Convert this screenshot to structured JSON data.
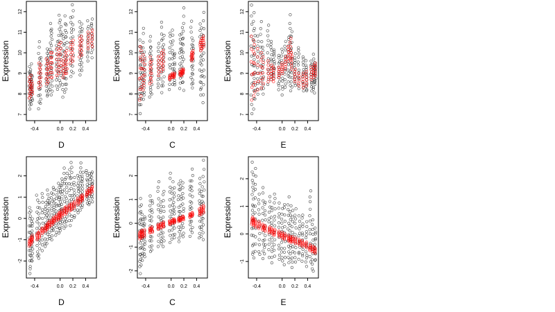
{
  "figure": {
    "colors": {
      "background": "#ffffff",
      "observed": "#000000",
      "fitted": "#ff0000"
    },
    "grid": false
  },
  "chart_data": [
    {
      "type": "scatter",
      "xlabel": "D",
      "ylabel": "Expression",
      "xlim": [
        -0.53,
        0.57
      ],
      "ylim": [
        6.7,
        12.5
      ],
      "xticks": [
        "-0.4",
        "0.0",
        "0.2",
        "0.4"
      ],
      "xtick_values": [
        -0.4,
        0.0,
        0.2,
        0.4
      ],
      "yticks": [
        "7",
        "8",
        "9",
        "10",
        "11",
        "12"
      ],
      "ytick_values": [
        7,
        8,
        9,
        10,
        11,
        12
      ],
      "observed": {
        "x": [
          -0.48,
          -0.46,
          -0.44,
          -0.33,
          -0.31,
          -0.21,
          -0.19,
          -0.15,
          -0.13,
          -0.05,
          -0.02,
          0.01,
          0.05,
          0.08,
          0.1,
          0.17,
          0.2,
          0.31,
          0.34,
          0.44,
          0.5
        ],
        "y_low": [
          7.3,
          7.5,
          7.7,
          7.3,
          7.6,
          7.9,
          8.0,
          7.9,
          8.1,
          8.2,
          8.4,
          8.6,
          7.9,
          8.1,
          8.2,
          8.9,
          9.0,
          8.9,
          9.1,
          9.6,
          9.8
        ],
        "y_high": [
          9.3,
          9.4,
          8.9,
          10.6,
          9.8,
          10.2,
          10.0,
          11.4,
          11.2,
          10.6,
          11.8,
          11.6,
          10.9,
          11.8,
          11.3,
          11.7,
          12.3,
          11.5,
          11.4,
          11.5,
          11.6
        ]
      },
      "fitted": {
        "x": [
          -0.48,
          -0.46,
          -0.44,
          -0.33,
          -0.31,
          -0.21,
          -0.19,
          -0.15,
          -0.13,
          -0.05,
          -0.02,
          0.01,
          0.05,
          0.08,
          0.1,
          0.17,
          0.2,
          0.31,
          0.34,
          0.44,
          0.5
        ],
        "y_low": [
          7.8,
          7.9,
          8.0,
          8.3,
          8.4,
          8.5,
          8.6,
          8.8,
          8.8,
          8.9,
          9.0,
          9.1,
          8.8,
          9.0,
          9.0,
          9.5,
          9.6,
          9.8,
          9.9,
          10.2,
          10.3
        ],
        "y_high": [
          8.8,
          8.9,
          8.6,
          9.5,
          9.4,
          9.7,
          9.6,
          10.0,
          10.0,
          10.2,
          10.4,
          10.5,
          9.6,
          10.0,
          10.1,
          10.5,
          10.6,
          10.7,
          10.8,
          11.0,
          11.1
        ]
      }
    },
    {
      "type": "scatter",
      "xlabel": "C",
      "ylabel": "Expression",
      "xlim": [
        -0.53,
        0.57
      ],
      "ylim": [
        6.7,
        12.5
      ],
      "xticks": [
        "-0.4",
        "0.0",
        "0.2",
        "0.4"
      ],
      "xtick_values": [
        -0.4,
        0.0,
        0.2,
        0.4
      ],
      "yticks": [
        "7",
        "8",
        "9",
        "10",
        "11",
        "12"
      ],
      "ytick_values": [
        7,
        8,
        9,
        10,
        11,
        12
      ],
      "observed": {
        "x": [
          -0.49,
          -0.47,
          -0.44,
          -0.42,
          -0.33,
          -0.31,
          -0.2,
          -0.15,
          -0.12,
          -0.02,
          0.02,
          0.05,
          0.14,
          0.17,
          0.19,
          0.32,
          0.34,
          0.46,
          0.48,
          0.51
        ],
        "y_low": [
          7.1,
          7.5,
          7.7,
          7.9,
          7.8,
          8.0,
          8.3,
          8.1,
          8.4,
          8.2,
          8.5,
          8.4,
          8.3,
          8.6,
          8.2,
          8.5,
          8.3,
          7.9,
          8.3,
          7.6
        ],
        "y_high": [
          10.6,
          10.2,
          11.2,
          10.0,
          10.8,
          10.3,
          10.4,
          11.5,
          10.9,
          11.0,
          11.1,
          10.0,
          10.9,
          11.2,
          12.2,
          11.5,
          10.6,
          11.4,
          11.2,
          12.0
        ]
      },
      "fitted": {
        "x": [
          -0.49,
          -0.47,
          -0.44,
          -0.42,
          -0.33,
          -0.31,
          -0.2,
          -0.15,
          -0.12,
          -0.02,
          0.02,
          0.05,
          0.14,
          0.17,
          0.19,
          0.32,
          0.34,
          0.46,
          0.48,
          0.51
        ],
        "y_low": [
          7.7,
          7.9,
          8.2,
          8.4,
          8.5,
          8.6,
          8.9,
          9.1,
          9.2,
          8.7,
          8.8,
          8.8,
          8.9,
          8.9,
          9.0,
          9.6,
          9.7,
          10.1,
          10.2,
          10.3
        ],
        "y_high": [
          10.3,
          10.1,
          9.9,
          9.7,
          9.8,
          9.6,
          9.8,
          10.0,
          10.1,
          8.9,
          9.0,
          9.0,
          9.1,
          9.2,
          9.2,
          10.0,
          10.1,
          10.6,
          10.7,
          10.8
        ]
      }
    },
    {
      "type": "scatter",
      "xlabel": "E",
      "ylabel": "Expression",
      "xlim": [
        -0.53,
        0.57
      ],
      "ylim": [
        6.7,
        12.5
      ],
      "xticks": [
        "-0.4",
        "0.0",
        "0.2",
        "0.4"
      ],
      "xtick_values": [
        -0.4,
        0.0,
        0.2,
        0.4
      ],
      "yticks": [
        "7",
        "8",
        "9",
        "10",
        "11",
        "12"
      ],
      "ytick_values": [
        7,
        8,
        9,
        10,
        11,
        12
      ],
      "observed": {
        "x": [
          -0.48,
          -0.45,
          -0.43,
          -0.38,
          -0.33,
          -0.3,
          -0.22,
          -0.17,
          -0.13,
          -0.05,
          0.0,
          0.05,
          0.1,
          0.13,
          0.15,
          0.2,
          0.26,
          0.33,
          0.38,
          0.46,
          0.5,
          0.52
        ],
        "y_low": [
          7.0,
          7.3,
          7.8,
          8.0,
          8.2,
          8.0,
          8.4,
          8.7,
          8.8,
          8.2,
          8.0,
          8.3,
          8.6,
          8.1,
          8.3,
          8.4,
          8.3,
          8.2,
          8.1,
          8.2,
          8.0,
          8.5
        ],
        "y_high": [
          12.3,
          11.9,
          11.2,
          10.8,
          11.5,
          10.3,
          11.4,
          10.6,
          10.2,
          9.9,
          10.2,
          10.5,
          10.8,
          11.8,
          11.0,
          9.9,
          10.3,
          9.8,
          9.6,
          9.6,
          9.9,
          9.5
        ]
      },
      "fitted": {
        "x": [
          -0.48,
          -0.45,
          -0.43,
          -0.38,
          -0.33,
          -0.3,
          -0.22,
          -0.17,
          -0.13,
          -0.05,
          0.0,
          0.05,
          0.1,
          0.13,
          0.15,
          0.2,
          0.26,
          0.33,
          0.38,
          0.46,
          0.5,
          0.52
        ],
        "y_low": [
          7.7,
          7.9,
          8.1,
          8.2,
          8.3,
          8.5,
          8.6,
          8.7,
          8.6,
          8.8,
          9.0,
          9.2,
          9.6,
          9.7,
          9.2,
          8.6,
          8.4,
          8.3,
          8.4,
          8.7,
          8.8,
          8.9
        ],
        "y_high": [
          10.8,
          10.6,
          10.4,
          10.2,
          10.0,
          9.8,
          9.6,
          9.4,
          9.3,
          9.3,
          9.5,
          9.8,
          10.3,
          10.7,
          10.0,
          9.2,
          9.0,
          9.0,
          9.1,
          9.3,
          9.4,
          9.5
        ]
      }
    },
    {
      "type": "scatter",
      "xlabel": "D",
      "ylabel": "Expression",
      "xlim": [
        -0.53,
        0.57
      ],
      "ylim": [
        -2.8,
        2.9
      ],
      "xticks": [
        "-0.4",
        "0.0",
        "0.2",
        "0.4"
      ],
      "xtick_values": [
        -0.4,
        0.0,
        0.2,
        0.4
      ],
      "yticks": [
        "-2",
        "-1",
        "0",
        "1",
        "2"
      ],
      "ytick_values": [
        -2,
        -1,
        0,
        1,
        2
      ],
      "observed": {
        "x": [
          -0.48,
          -0.46,
          -0.44,
          -0.36,
          -0.33,
          -0.28,
          -0.23,
          -0.2,
          -0.17,
          -0.13,
          -0.1,
          -0.06,
          -0.02,
          0.0,
          0.03,
          0.07,
          0.1,
          0.15,
          0.18,
          0.22,
          0.28,
          0.32,
          0.35,
          0.42,
          0.46,
          0.5
        ],
        "y_low": [
          -2.6,
          -2.2,
          -2.0,
          -1.8,
          -1.9,
          -1.5,
          -1.3,
          -1.2,
          -1.0,
          -1.0,
          -0.6,
          -0.8,
          -0.7,
          -0.6,
          -0.3,
          -0.5,
          -0.4,
          -0.3,
          -0.1,
          0.0,
          0.3,
          0.4,
          0.5,
          0.7,
          0.6,
          0.8
        ],
        "y_high": [
          0.5,
          0.3,
          0.0,
          1.1,
          0.7,
          1.2,
          0.8,
          1.3,
          1.0,
          1.2,
          1.5,
          1.3,
          1.7,
          1.6,
          1.9,
          2.4,
          2.1,
          2.3,
          2.6,
          1.9,
          2.0,
          2.6,
          2.2,
          2.3,
          2.1,
          2.2
        ]
      },
      "fitted": {
        "x": [
          -0.48,
          -0.46,
          -0.44,
          -0.36,
          -0.33,
          -0.28,
          -0.23,
          -0.2,
          -0.17,
          -0.13,
          -0.1,
          -0.06,
          -0.02,
          0.0,
          0.03,
          0.07,
          0.1,
          0.15,
          0.18,
          0.22,
          0.28,
          0.32,
          0.35,
          0.42,
          0.46,
          0.5
        ],
        "y_low": [
          -1.3,
          -1.2,
          -1.1,
          -1.0,
          -0.9,
          -0.7,
          -0.6,
          -0.5,
          -0.4,
          -0.3,
          -0.2,
          -0.1,
          -0.05,
          0.0,
          0.1,
          0.2,
          0.25,
          0.35,
          0.4,
          0.5,
          0.65,
          0.75,
          0.85,
          1.05,
          1.15,
          1.25
        ],
        "y_high": [
          -1.0,
          -0.9,
          -0.8,
          -0.7,
          -0.6,
          -0.45,
          -0.35,
          -0.25,
          -0.15,
          -0.05,
          0.05,
          0.15,
          0.25,
          0.3,
          0.4,
          0.5,
          0.55,
          0.65,
          0.7,
          0.8,
          0.95,
          1.05,
          1.1,
          1.3,
          1.4,
          1.5
        ]
      }
    },
    {
      "type": "scatter",
      "xlabel": "C",
      "ylabel": "Expression",
      "xlim": [
        -0.53,
        0.57
      ],
      "ylim": [
        -2.3,
        2.8
      ],
      "xticks": [
        "-0.4",
        "0.0",
        "0.2",
        "0.4"
      ],
      "xtick_values": [
        -0.4,
        0.0,
        0.2,
        0.4
      ],
      "yticks": [
        "-2",
        "-1",
        "0",
        "1",
        "2"
      ],
      "ytick_values": [
        -2,
        -1,
        0,
        1,
        2
      ],
      "observed": {
        "x": [
          -0.49,
          -0.47,
          -0.45,
          -0.42,
          -0.33,
          -0.3,
          -0.2,
          -0.16,
          -0.12,
          -0.02,
          0.02,
          0.05,
          0.12,
          0.15,
          0.19,
          0.3,
          0.33,
          0.45,
          0.48,
          0.51
        ],
        "y_low": [
          -2.1,
          -1.8,
          -1.6,
          -1.4,
          -1.2,
          -1.1,
          -1.0,
          -0.9,
          -1.0,
          -0.8,
          -0.7,
          -0.6,
          -0.8,
          -0.5,
          -0.6,
          -0.5,
          -0.4,
          -0.6,
          -0.5,
          -0.7
        ],
        "y_high": [
          0.7,
          1.0,
          0.4,
          0.3,
          1.2,
          1.0,
          1.8,
          0.9,
          1.4,
          2.1,
          1.7,
          1.5,
          1.6,
          1.8,
          1.7,
          1.8,
          2.3,
          1.9,
          1.5,
          2.6
        ]
      },
      "fitted": {
        "x": [
          -0.49,
          -0.47,
          -0.45,
          -0.42,
          -0.33,
          -0.3,
          -0.2,
          -0.16,
          -0.12,
          -0.02,
          0.02,
          0.05,
          0.12,
          0.15,
          0.19,
          0.3,
          0.33,
          0.45,
          0.48,
          0.51
        ],
        "y_low": [
          -0.65,
          -0.62,
          -0.58,
          -0.55,
          -0.4,
          -0.37,
          -0.25,
          -0.2,
          -0.15,
          -0.05,
          0.0,
          0.03,
          0.08,
          0.1,
          0.15,
          0.25,
          0.3,
          0.35,
          0.4,
          0.45
        ],
        "y_high": [
          -0.35,
          -0.32,
          -0.3,
          -0.27,
          -0.2,
          -0.15,
          -0.05,
          0.0,
          0.05,
          0.1,
          0.15,
          0.18,
          0.22,
          0.25,
          0.3,
          0.4,
          0.45,
          0.6,
          0.7,
          0.75
        ]
      }
    },
    {
      "type": "scatter",
      "xlabel": "E",
      "ylabel": "Expression",
      "xlim": [
        -0.53,
        0.57
      ],
      "ylim": [
        -1.6,
        2.8
      ],
      "xticks": [
        "-0.4",
        "0.0",
        "0.2",
        "0.4"
      ],
      "xtick_values": [
        -0.4,
        0.0,
        0.2,
        0.4
      ],
      "yticks": [
        "-1",
        "0",
        "1",
        "2"
      ],
      "ytick_values": [
        -1,
        0,
        1,
        2
      ],
      "observed": {
        "x": [
          -0.47,
          -0.45,
          -0.42,
          -0.36,
          -0.3,
          -0.27,
          -0.2,
          -0.16,
          -0.12,
          -0.05,
          0.0,
          0.04,
          0.1,
          0.13,
          0.16,
          0.21,
          0.27,
          0.32,
          0.38,
          0.44,
          0.48,
          0.52
        ],
        "y_low": [
          -0.7,
          -0.9,
          -0.6,
          -0.8,
          -0.9,
          -0.7,
          -0.8,
          -1.0,
          -0.8,
          -0.9,
          -1.0,
          -1.1,
          -1.1,
          -0.9,
          -1.2,
          -1.0,
          -0.9,
          -1.0,
          -1.2,
          -1.0,
          -1.4,
          -1.0
        ],
        "y_high": [
          2.6,
          2.1,
          2.4,
          1.5,
          1.7,
          1.2,
          1.4,
          1.0,
          1.5,
          1.1,
          0.9,
          1.1,
          1.3,
          1.0,
          0.8,
          0.9,
          0.6,
          0.7,
          0.4,
          1.6,
          0.5,
          0.2
        ]
      },
      "fitted": {
        "x": [
          -0.47,
          -0.45,
          -0.42,
          -0.36,
          -0.3,
          -0.27,
          -0.2,
          -0.16,
          -0.12,
          -0.05,
          0.0,
          0.04,
          0.1,
          0.13,
          0.16,
          0.21,
          0.27,
          0.32,
          0.38,
          0.44,
          0.48,
          0.52
        ],
        "y_low": [
          0.35,
          0.3,
          0.25,
          0.2,
          0.15,
          0.1,
          0.05,
          0.0,
          -0.05,
          -0.1,
          -0.15,
          -0.2,
          -0.25,
          -0.3,
          -0.3,
          -0.35,
          -0.4,
          -0.45,
          -0.5,
          -0.6,
          -0.65,
          -0.7
        ],
        "y_high": [
          0.6,
          0.55,
          0.5,
          0.45,
          0.35,
          0.3,
          0.25,
          0.2,
          0.15,
          0.1,
          0.05,
          0.0,
          -0.05,
          -0.1,
          -0.1,
          -0.15,
          -0.2,
          -0.25,
          -0.3,
          -0.4,
          -0.45,
          -0.5
        ]
      }
    }
  ]
}
